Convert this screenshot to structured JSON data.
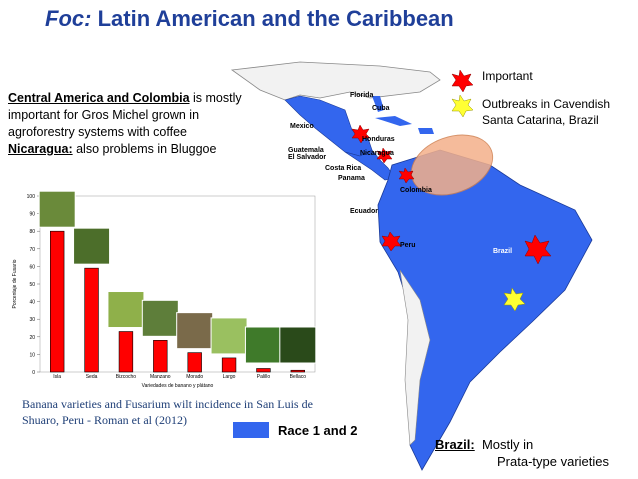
{
  "title": {
    "prefix": "Foc:",
    "text": "Latin American and the Caribbean"
  },
  "intro": {
    "lead": "Central America and Colombia",
    "rest": "is mostly important for Gros Michel grown in agroforestry systems with coffee",
    "nicaragua_lead": "Nicaragua:",
    "nicaragua_rest": "also problems in Bluggoe"
  },
  "legend": {
    "important": "Important",
    "outbreaks": "Outbreaks in Cavendish Santa Catarina, Brazil",
    "race": "Race 1 and 2"
  },
  "map_labels": [
    "Florida",
    "Cuba",
    "Mexico",
    "Honduras",
    "Guatemala",
    "El Salvador",
    "Nicaragua",
    "Costa Rica",
    "Panama",
    "Colombia",
    "Ecuador",
    "Peru",
    "Brazil"
  ],
  "caption": "Banana varieties and Fusarium wilt incidence in San Luis de Shuaro, Peru - Roman et al (2012)",
  "brazil_note": {
    "lead": "Brazil:",
    "line1": "Mostly in",
    "line2": "Prata-type varieties"
  },
  "chart": {
    "type": "bar",
    "ylabel": "Porcentaje de Fusario",
    "xlabel": "Variedades de banano y plátano",
    "categories": [
      "Isla",
      "Seda",
      "Bizcocho",
      "Manzano",
      "Morado",
      "Largo",
      "Palillo",
      "Bellaco"
    ],
    "values": [
      80,
      59,
      23,
      18,
      11,
      8,
      2,
      1
    ],
    "color": "#ff0000",
    "ylim": [
      0,
      100
    ],
    "yticks": [
      0,
      10,
      20,
      30,
      40,
      50,
      60,
      70,
      80,
      90,
      100
    ],
    "grid": false
  }
}
